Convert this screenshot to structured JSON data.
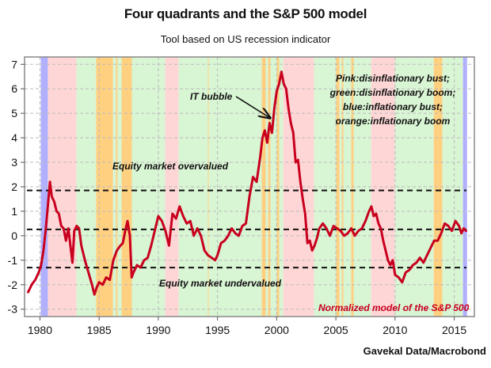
{
  "chart_data": {
    "type": "line",
    "title": "Four quadrants and the S&P 500 model",
    "subtitle": "Tool based on US recession indicator",
    "source": "Gavekal Data/Macrobond",
    "xlabel": "",
    "ylabel": "",
    "xlim": [
      1978.7,
      2016.7
    ],
    "ylim": [
      -3.3,
      7.3
    ],
    "x_ticks": [
      1980,
      1985,
      1990,
      1995,
      2000,
      2005,
      2010,
      2015
    ],
    "y_ticks": [
      -3,
      -2,
      -1,
      0,
      1,
      2,
      3,
      4,
      5,
      6,
      7
    ],
    "grid": true,
    "colors": {
      "line": "#c8001e",
      "pink": "#ffd6d6",
      "green": "#d8f5d4",
      "blue": "#b0b0ff",
      "orange": "#ffd080",
      "frame": "#888888",
      "grid": "#bbbbbb",
      "threshold": "#111111",
      "series_label": "#c8001e"
    },
    "series": [
      {
        "name": "Normalized model of the S&P 500",
        "x": [
          1979.0,
          1979.3,
          1979.6,
          1979.9,
          1980.1,
          1980.3,
          1980.5,
          1980.7,
          1980.85,
          1981.0,
          1981.2,
          1981.4,
          1981.6,
          1981.8,
          1982.0,
          1982.2,
          1982.4,
          1982.6,
          1982.75,
          1982.9,
          1983.1,
          1983.3,
          1983.5,
          1983.8,
          1984.1,
          1984.4,
          1984.6,
          1984.8,
          1985.0,
          1985.3,
          1985.6,
          1985.9,
          1986.2,
          1986.5,
          1986.8,
          1987.0,
          1987.2,
          1987.4,
          1987.6,
          1987.75,
          1987.9,
          1988.2,
          1988.5,
          1988.8,
          1989.1,
          1989.4,
          1989.7,
          1990.0,
          1990.3,
          1990.6,
          1990.9,
          1991.2,
          1991.5,
          1991.8,
          1992.1,
          1992.4,
          1992.7,
          1993.0,
          1993.3,
          1993.6,
          1993.9,
          1994.2,
          1994.5,
          1994.8,
          1995.0,
          1995.3,
          1995.6,
          1995.9,
          1996.2,
          1996.5,
          1996.8,
          1997.1,
          1997.4,
          1997.7,
          1998.0,
          1998.3,
          1998.6,
          1998.8,
          1999.0,
          1999.2,
          1999.4,
          1999.6,
          1999.8,
          2000.0,
          2000.2,
          2000.4,
          2000.6,
          2000.8,
          2001.0,
          2001.2,
          2001.4,
          2001.6,
          2001.8,
          2002.0,
          2002.2,
          2002.4,
          2002.6,
          2002.8,
          2003.0,
          2003.2,
          2003.4,
          2003.6,
          2003.9,
          2004.2,
          2004.5,
          2004.8,
          2005.1,
          2005.4,
          2005.7,
          2006.0,
          2006.3,
          2006.6,
          2006.9,
          2007.2,
          2007.5,
          2007.8,
          2008.0,
          2008.2,
          2008.4,
          2008.6,
          2008.8,
          2009.0,
          2009.2,
          2009.4,
          2009.6,
          2009.8,
          2010.0,
          2010.3,
          2010.6,
          2010.9,
          2011.2,
          2011.5,
          2011.8,
          2012.1,
          2012.4,
          2012.7,
          2013.0,
          2013.3,
          2013.6,
          2013.9,
          2014.2,
          2014.5,
          2014.8,
          2015.1,
          2015.4,
          2015.6,
          2015.8,
          2016.0
        ],
        "y": [
          -2.3,
          -2.0,
          -1.8,
          -1.5,
          -1.2,
          -0.6,
          0.3,
          1.4,
          2.2,
          1.6,
          1.4,
          1.0,
          0.9,
          0.4,
          0.3,
          -0.2,
          0.3,
          -0.5,
          -1.1,
          0.2,
          0.4,
          0.3,
          -0.4,
          -1.0,
          -1.5,
          -2.0,
          -2.4,
          -2.1,
          -1.9,
          -2.0,
          -1.7,
          -1.8,
          -1.0,
          -0.6,
          -0.4,
          -0.3,
          0.2,
          0.6,
          0.0,
          -1.7,
          -1.5,
          -1.2,
          -1.3,
          -1.0,
          -0.9,
          -0.4,
          0.2,
          0.8,
          0.6,
          0.2,
          -0.4,
          0.9,
          0.7,
          1.2,
          0.8,
          0.5,
          0.6,
          0.0,
          0.3,
          0.0,
          -0.6,
          -0.8,
          -0.9,
          -1.0,
          -0.8,
          -0.3,
          -0.2,
          0.0,
          0.3,
          0.1,
          0.0,
          0.4,
          0.5,
          1.6,
          2.4,
          2.2,
          3.2,
          4.0,
          4.3,
          3.8,
          4.6,
          4.2,
          5.2,
          5.9,
          6.2,
          6.7,
          6.2,
          6.0,
          5.2,
          4.6,
          4.2,
          3.0,
          3.1,
          2.2,
          1.5,
          0.9,
          -0.3,
          -0.2,
          -0.6,
          -0.4,
          -0.1,
          0.3,
          0.5,
          0.3,
          0.0,
          0.4,
          0.3,
          0.2,
          0.0,
          0.1,
          0.3,
          0.0,
          0.2,
          0.3,
          0.6,
          1.0,
          1.2,
          0.8,
          0.9,
          0.5,
          0.3,
          -0.2,
          -0.6,
          -1.0,
          -1.2,
          -1.0,
          -1.6,
          -1.7,
          -1.9,
          -1.5,
          -1.4,
          -1.2,
          -1.1,
          -0.9,
          -1.1,
          -0.8,
          -0.5,
          -0.2,
          -0.2,
          0.1,
          0.5,
          0.4,
          0.2,
          0.6,
          0.4,
          0.1,
          0.3,
          0.2
        ]
      }
    ],
    "thresholds": [
      {
        "name": "overvalued",
        "value": 1.85
      },
      {
        "name": "fair",
        "value": 0.26
      },
      {
        "name": "undervalued",
        "value": -1.3
      }
    ],
    "bands": [
      {
        "start": 1980.07,
        "end": 1980.67,
        "regime": "blue"
      },
      {
        "start": 1980.67,
        "end": 1983.08,
        "regime": "pink"
      },
      {
        "start": 1983.08,
        "end": 1984.75,
        "regime": "green"
      },
      {
        "start": 1984.75,
        "end": 1986.16,
        "regime": "orange"
      },
      {
        "start": 1986.16,
        "end": 1986.43,
        "regime": "green"
      },
      {
        "start": 1986.43,
        "end": 1986.56,
        "regime": "orange"
      },
      {
        "start": 1986.56,
        "end": 1986.9,
        "regime": "green"
      },
      {
        "start": 1986.9,
        "end": 1987.77,
        "regime": "orange"
      },
      {
        "start": 1987.77,
        "end": 1990.58,
        "regime": "green"
      },
      {
        "start": 1990.58,
        "end": 1991.71,
        "regime": "pink"
      },
      {
        "start": 1991.71,
        "end": 1994.19,
        "regime": "green"
      },
      {
        "start": 1994.19,
        "end": 1994.26,
        "regime": "orange"
      },
      {
        "start": 1994.26,
        "end": 1998.74,
        "regime": "green"
      },
      {
        "start": 1998.74,
        "end": 1999.08,
        "regime": "orange"
      },
      {
        "start": 1999.08,
        "end": 1999.28,
        "regime": "green"
      },
      {
        "start": 1999.28,
        "end": 1999.48,
        "regime": "orange"
      },
      {
        "start": 1999.48,
        "end": 2000.01,
        "regime": "green"
      },
      {
        "start": 2000.01,
        "end": 2000.21,
        "regime": "orange"
      },
      {
        "start": 2000.21,
        "end": 2000.55,
        "regime": "green"
      },
      {
        "start": 2000.55,
        "end": 2003.16,
        "regime": "pink"
      },
      {
        "start": 2003.16,
        "end": 2005.03,
        "regime": "green"
      },
      {
        "start": 2005.03,
        "end": 2005.3,
        "regime": "orange"
      },
      {
        "start": 2005.3,
        "end": 2005.5,
        "regime": "green"
      },
      {
        "start": 2005.5,
        "end": 2005.64,
        "regime": "orange"
      },
      {
        "start": 2005.64,
        "end": 2006.3,
        "regime": "green"
      },
      {
        "start": 2006.3,
        "end": 2006.5,
        "regime": "orange"
      },
      {
        "start": 2006.5,
        "end": 2007.98,
        "regime": "green"
      },
      {
        "start": 2007.98,
        "end": 2009.99,
        "regime": "pink"
      },
      {
        "start": 2009.99,
        "end": 2013.27,
        "regime": "green"
      },
      {
        "start": 2013.27,
        "end": 2014.0,
        "regime": "orange"
      },
      {
        "start": 2014.0,
        "end": 2015.74,
        "regime": "green"
      },
      {
        "start": 2015.74,
        "end": 2016.08,
        "regime": "blue"
      }
    ],
    "annotations": {
      "overvalued": "Equity market overvalued",
      "undervalued": "Equity market undervalued",
      "it_bubble": "IT bubble",
      "legend_lines": [
        "Pink:disinflationary bust;",
        "green:disinflationary boom;",
        "blue:inflationary bust;",
        "orange:inflationary boom"
      ],
      "series_label": "Normalized model of the S&P 500",
      "it_bubble_arrow_target": {
        "x": 1999.6,
        "y": 4.8
      }
    }
  }
}
